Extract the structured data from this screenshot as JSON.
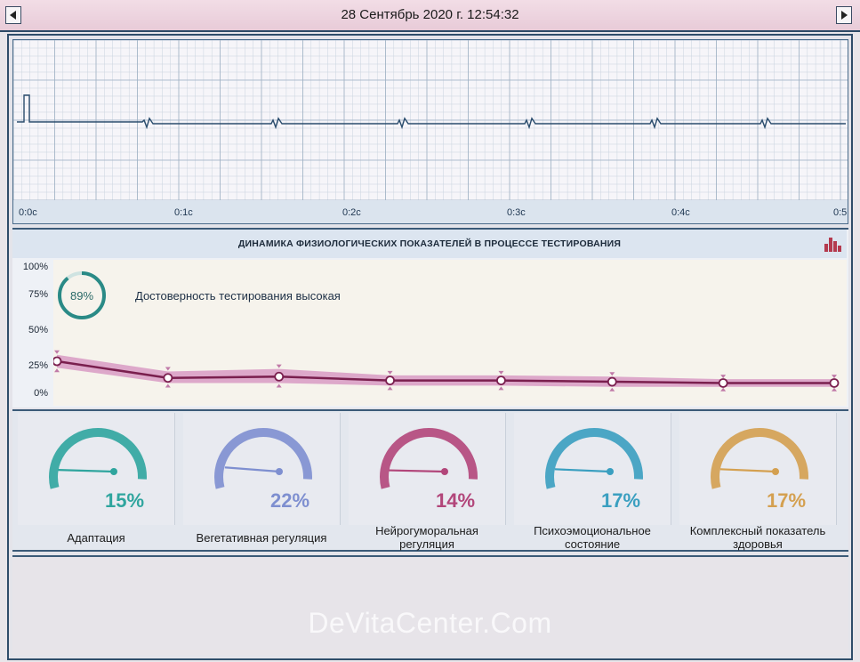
{
  "header": {
    "datetime": "28 Сентябрь 2020 г. 12:54:32"
  },
  "ecg": {
    "time_ticks": [
      "0:0с",
      "0:1с",
      "0:2с",
      "0:3с",
      "0:4с",
      "0:5"
    ]
  },
  "dynamics": {
    "title": "ДИНАМИКА ФИЗИОЛОГИЧЕСКИХ ПОКАЗАТЕЛЕЙ В ПРОЦЕССЕ ТЕСТИРОВАНИЯ",
    "reliability": {
      "percent_label": "89%",
      "value": 89,
      "text": "Достоверность тестирования высокая",
      "color": "#2a8a86"
    },
    "line_color": "#7a1f4e",
    "band_color": "#d89ac4"
  },
  "chart_data": {
    "type": "line",
    "ylim": [
      0,
      100
    ],
    "yticks": [
      "100%",
      "75%",
      "50%",
      "25%",
      "0%"
    ],
    "x": [
      1,
      2,
      3,
      4,
      5,
      6,
      7,
      8
    ],
    "series": [
      {
        "values": [
          25,
          12,
          13,
          10,
          10,
          9,
          8,
          8
        ]
      }
    ],
    "band_upper": [
      30,
      17,
      19,
      14,
      14,
      13,
      11,
      11
    ],
    "band_lower": [
      20,
      8,
      8,
      6,
      6,
      5,
      5,
      5
    ]
  },
  "gauges": [
    {
      "label": "Адаптация",
      "value_label": "15%",
      "value": 15,
      "color": "#2fa59e",
      "icon": "gauge-icon"
    },
    {
      "label": "Вегетативная регуляция",
      "value_label": "22%",
      "value": 22,
      "color": "#7e8fd0",
      "icon": "gauge-icon"
    },
    {
      "label": "Нейрогуморальная регуляция",
      "value_label": "14%",
      "value": 14,
      "color": "#b2467a",
      "icon": "gauge-icon"
    },
    {
      "label": "Психоэмоциональное состояние",
      "value_label": "17%",
      "value": 17,
      "color": "#3a9fc0",
      "icon": "gauge-icon"
    },
    {
      "label": "Комплексный показатель здоровья",
      "value_label": "17%",
      "value": 17,
      "color": "#d4a050",
      "icon": "gauge-icon"
    }
  ],
  "watermark": "DeVitaCenter.Com"
}
